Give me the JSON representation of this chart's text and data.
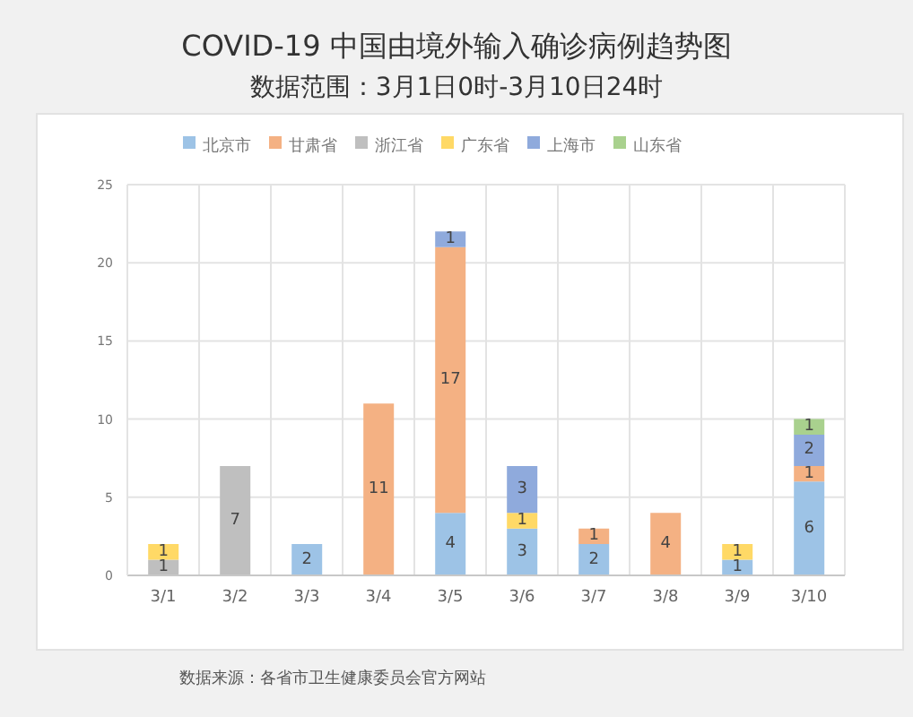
{
  "chart_data": {
    "type": "bar",
    "title": "COVID-19 中国由境外输入确诊病例趋势图",
    "subtitle": "数据范围：3月1日0时-3月10日24时",
    "categories": [
      "3/1",
      "3/2",
      "3/3",
      "3/4",
      "3/5",
      "3/6",
      "3/7",
      "3/8",
      "3/9",
      "3/10"
    ],
    "series": [
      {
        "name": "北京市",
        "color": "#9dc3e6",
        "values": [
          null,
          null,
          2,
          null,
          4,
          3,
          2,
          null,
          1,
          6
        ]
      },
      {
        "name": "甘肃省",
        "color": "#f4b183",
        "values": [
          null,
          null,
          null,
          11,
          17,
          null,
          1,
          4,
          null,
          1
        ]
      },
      {
        "name": "浙江省",
        "color": "#bfbfbf",
        "values": [
          1,
          7,
          null,
          null,
          null,
          null,
          null,
          null,
          null,
          null
        ]
      },
      {
        "name": "广东省",
        "color": "#ffd966",
        "values": [
          1,
          null,
          null,
          null,
          null,
          1,
          null,
          null,
          1,
          null
        ]
      },
      {
        "name": "上海市",
        "color": "#8faadc",
        "values": [
          null,
          null,
          null,
          null,
          1,
          3,
          null,
          null,
          null,
          2
        ]
      },
      {
        "name": "山东省",
        "color": "#a9d18e",
        "values": [
          null,
          null,
          null,
          null,
          null,
          null,
          null,
          null,
          null,
          1
        ]
      }
    ],
    "stacked": true,
    "ylim": [
      0,
      25
    ],
    "yticks": [
      0,
      5,
      10,
      15,
      20,
      25
    ],
    "grid": true,
    "legend": "top",
    "data_labels": true,
    "annotations": [
      "数据来源：各省市卫生健康委员会官方网站"
    ]
  }
}
